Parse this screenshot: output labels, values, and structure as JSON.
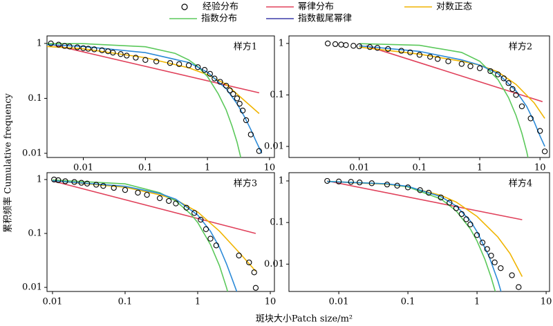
{
  "legend": [
    {
      "name": "经验分布",
      "color": "#000000",
      "mode": "markers"
    },
    {
      "name": "幂律分布",
      "color": "#e0405a",
      "mode": "line"
    },
    {
      "name": "对数正态",
      "color": "#f0b400",
      "mode": "line"
    },
    {
      "name": "指数分布",
      "color": "#5ac85a",
      "mode": "line"
    },
    {
      "name": "指数截尾幂律",
      "color": "#3a3aa8",
      "mode": "line"
    }
  ],
  "curve_color_truncated": "#2b8ad8",
  "y_label": "累积频率 Cumulative frequency",
  "x_label": "斑块大小Patch size/m²",
  "chart_data": [
    {
      "type": "line",
      "label": "样方1",
      "log_x": true,
      "log_y": true,
      "xlim": [
        0.0026,
        12
      ],
      "ylim": [
        0.0084,
        1.37
      ],
      "xticks": [
        0.01,
        0.1,
        1,
        10
      ],
      "yticks": [
        0.01,
        0.1,
        1
      ],
      "series": [
        {
          "x": [
            0.003,
            0.004,
            0.005,
            0.006,
            0.008,
            0.01,
            0.012,
            0.015,
            0.02,
            0.025,
            0.03,
            0.04,
            0.05,
            0.07,
            0.1,
            0.15,
            0.25,
            0.35,
            0.5,
            0.7,
            0.9,
            1.1,
            1.3,
            1.6,
            2,
            2.3,
            2.6,
            3,
            3.3,
            3.7,
            4.2,
            5,
            6.8
          ],
          "values": [
            1,
            0.95,
            0.9,
            0.88,
            0.85,
            0.82,
            0.8,
            0.78,
            0.75,
            0.72,
            0.68,
            0.64,
            0.6,
            0.55,
            0.5,
            0.47,
            0.44,
            0.42,
            0.4,
            0.37,
            0.33,
            0.28,
            0.23,
            0.2,
            0.17,
            0.14,
            0.12,
            0.1,
            0.08,
            0.06,
            0.04,
            0.022,
            0.011
          ]
        },
        {
          "x": [
            0.0026,
            6.8
          ],
          "values": [
            1,
            0.126
          ]
        },
        {
          "x": [
            0.0026,
            0.01,
            0.1,
            0.5,
            1,
            2,
            4,
            6.8
          ],
          "values": [
            0.88,
            0.8,
            0.55,
            0.36,
            0.27,
            0.18,
            0.09,
            0.053
          ]
        },
        {
          "x": [
            0.0026,
            0.01,
            0.1,
            0.3,
            0.5,
            0.7,
            1,
            1.5,
            2,
            2.5,
            3,
            3.5
          ],
          "values": [
            0.99,
            0.99,
            0.87,
            0.66,
            0.5,
            0.38,
            0.25,
            0.12,
            0.062,
            0.031,
            0.016,
            0.0077
          ]
        },
        {
          "x": [
            0.0026,
            0.01,
            0.1,
            0.5,
            1,
            2,
            3,
            4,
            5,
            6,
            7.5
          ],
          "values": [
            0.95,
            0.88,
            0.68,
            0.45,
            0.3,
            0.15,
            0.08,
            0.045,
            0.027,
            0.017,
            0.01
          ]
        }
      ]
    },
    {
      "type": "line",
      "label": "样方2",
      "log_x": true,
      "log_y": true,
      "xlim": [
        0.00068,
        14.4
      ],
      "ylim": [
        0.0061,
        1.4
      ],
      "xticks": [
        0.01,
        0.1,
        1,
        10
      ],
      "yticks": [
        0.01,
        0.1,
        1
      ],
      "series": [
        {
          "x": [
            0.003,
            0.004,
            0.005,
            0.006,
            0.008,
            0.01,
            0.015,
            0.02,
            0.03,
            0.05,
            0.07,
            0.1,
            0.15,
            0.2,
            0.3,
            0.5,
            0.7,
            1,
            1.5,
            2,
            2.5,
            3,
            3.5,
            4,
            5,
            7,
            10,
            12
          ],
          "values": [
            1,
            0.97,
            0.95,
            0.93,
            0.9,
            0.88,
            0.85,
            0.82,
            0.78,
            0.72,
            0.67,
            0.6,
            0.55,
            0.5,
            0.45,
            0.4,
            0.36,
            0.33,
            0.29,
            0.25,
            0.21,
            0.17,
            0.13,
            0.1,
            0.06,
            0.035,
            0.02,
            0.008
          ]
        },
        {
          "x": [
            0.013,
            11
          ],
          "values": [
            0.9,
            0.074
          ]
        },
        {
          "x": [
            0.01,
            0.1,
            0.5,
            1,
            2,
            4,
            8,
            12
          ],
          "values": [
            0.85,
            0.62,
            0.45,
            0.38,
            0.28,
            0.16,
            0.07,
            0.035
          ]
        },
        {
          "x": [
            0.01,
            0.1,
            0.5,
            1,
            2,
            3,
            4,
            5,
            6,
            7
          ],
          "values": [
            0.99,
            0.92,
            0.67,
            0.45,
            0.2,
            0.089,
            0.04,
            0.018,
            0.008,
            0.0035
          ]
        },
        {
          "x": [
            0.01,
            0.1,
            0.5,
            1,
            2,
            4,
            6,
            8,
            10,
            12
          ],
          "values": [
            0.9,
            0.7,
            0.48,
            0.38,
            0.26,
            0.12,
            0.06,
            0.03,
            0.016,
            0.01
          ]
        }
      ]
    },
    {
      "type": "line",
      "label": "样方3",
      "log_x": true,
      "log_y": true,
      "xlim": [
        0.0084,
        11.4
      ],
      "ylim": [
        0.0084,
        1.34
      ],
      "xticks": [
        0.01,
        0.1,
        1,
        10
      ],
      "yticks": [
        0.01,
        0.1,
        1
      ],
      "series": [
        {
          "x": [
            0.0105,
            0.012,
            0.015,
            0.02,
            0.025,
            0.03,
            0.04,
            0.05,
            0.07,
            0.1,
            0.15,
            0.2,
            0.3,
            0.4,
            0.5,
            0.7,
            0.9,
            1.1,
            1.3,
            1.5,
            1.8,
            3.7,
            5.1,
            6,
            6.3
          ],
          "values": [
            1,
            0.97,
            0.93,
            0.9,
            0.87,
            0.84,
            0.8,
            0.76,
            0.7,
            0.64,
            0.57,
            0.52,
            0.45,
            0.4,
            0.36,
            0.3,
            0.24,
            0.18,
            0.12,
            0.08,
            0.06,
            0.039,
            0.029,
            0.019,
            0.0098
          ]
        },
        {
          "x": [
            0.01,
            6.3
          ],
          "values": [
            0.94,
            0.1
          ]
        },
        {
          "x": [
            0.01,
            0.1,
            0.3,
            0.5,
            1,
            2,
            4,
            6.3
          ],
          "values": [
            0.95,
            0.72,
            0.52,
            0.42,
            0.25,
            0.11,
            0.04,
            0.02
          ]
        },
        {
          "x": [
            0.01,
            0.1,
            0.3,
            0.5,
            0.8,
            1,
            1.5,
            2,
            2.5,
            2.8
          ],
          "values": [
            0.98,
            0.83,
            0.57,
            0.4,
            0.23,
            0.16,
            0.062,
            0.025,
            0.0098,
            0.0056
          ]
        },
        {
          "x": [
            0.01,
            0.1,
            0.3,
            0.5,
            1,
            1.5,
            2,
            2.5,
            3,
            3.5
          ],
          "values": [
            0.95,
            0.75,
            0.55,
            0.43,
            0.22,
            0.11,
            0.055,
            0.027,
            0.014,
            0.008
          ]
        }
      ]
    },
    {
      "type": "line",
      "label": "样方4",
      "log_x": true,
      "log_y": true,
      "xlim": [
        0.0019,
        11.2
      ],
      "ylim": [
        0.0022,
        1.58
      ],
      "xticks": [
        0.01,
        0.1,
        1,
        10
      ],
      "yticks": [
        0.01,
        0.1,
        1
      ],
      "series": [
        {
          "x": [
            0.0068,
            0.01,
            0.015,
            0.02,
            0.03,
            0.05,
            0.07,
            0.1,
            0.15,
            0.2,
            0.3,
            0.4,
            0.5,
            0.6,
            0.7,
            0.8,
            1,
            1.2,
            1.4,
            1.6,
            1.8,
            2.2,
            3.2,
            4
          ],
          "values": [
            1,
            0.97,
            0.95,
            0.92,
            0.88,
            0.82,
            0.77,
            0.7,
            0.6,
            0.52,
            0.4,
            0.3,
            0.22,
            0.16,
            0.12,
            0.09,
            0.05,
            0.033,
            0.023,
            0.016,
            0.011,
            0.008,
            0.0054,
            0.0028
          ]
        },
        {
          "x": [
            0.0068,
            4.5
          ],
          "values": [
            1,
            0.117
          ]
        },
        {
          "x": [
            0.0068,
            0.05,
            0.1,
            0.3,
            0.5,
            1,
            2,
            3,
            4.5
          ],
          "values": [
            0.97,
            0.83,
            0.72,
            0.45,
            0.31,
            0.14,
            0.045,
            0.018,
            0.005
          ]
        },
        {
          "x": [
            0.0068,
            0.05,
            0.1,
            0.3,
            0.5,
            0.8,
            1,
            1.3,
            1.6,
            1.9
          ],
          "values": [
            0.98,
            0.85,
            0.72,
            0.37,
            0.19,
            0.07,
            0.036,
            0.013,
            0.0048,
            0.0018
          ]
        },
        {
          "x": [
            0.0068,
            0.05,
            0.1,
            0.3,
            0.5,
            0.8,
            1,
            1.5,
            2,
            2.3
          ],
          "values": [
            0.97,
            0.85,
            0.74,
            0.42,
            0.25,
            0.11,
            0.06,
            0.015,
            0.004,
            0.0018
          ]
        }
      ]
    }
  ]
}
